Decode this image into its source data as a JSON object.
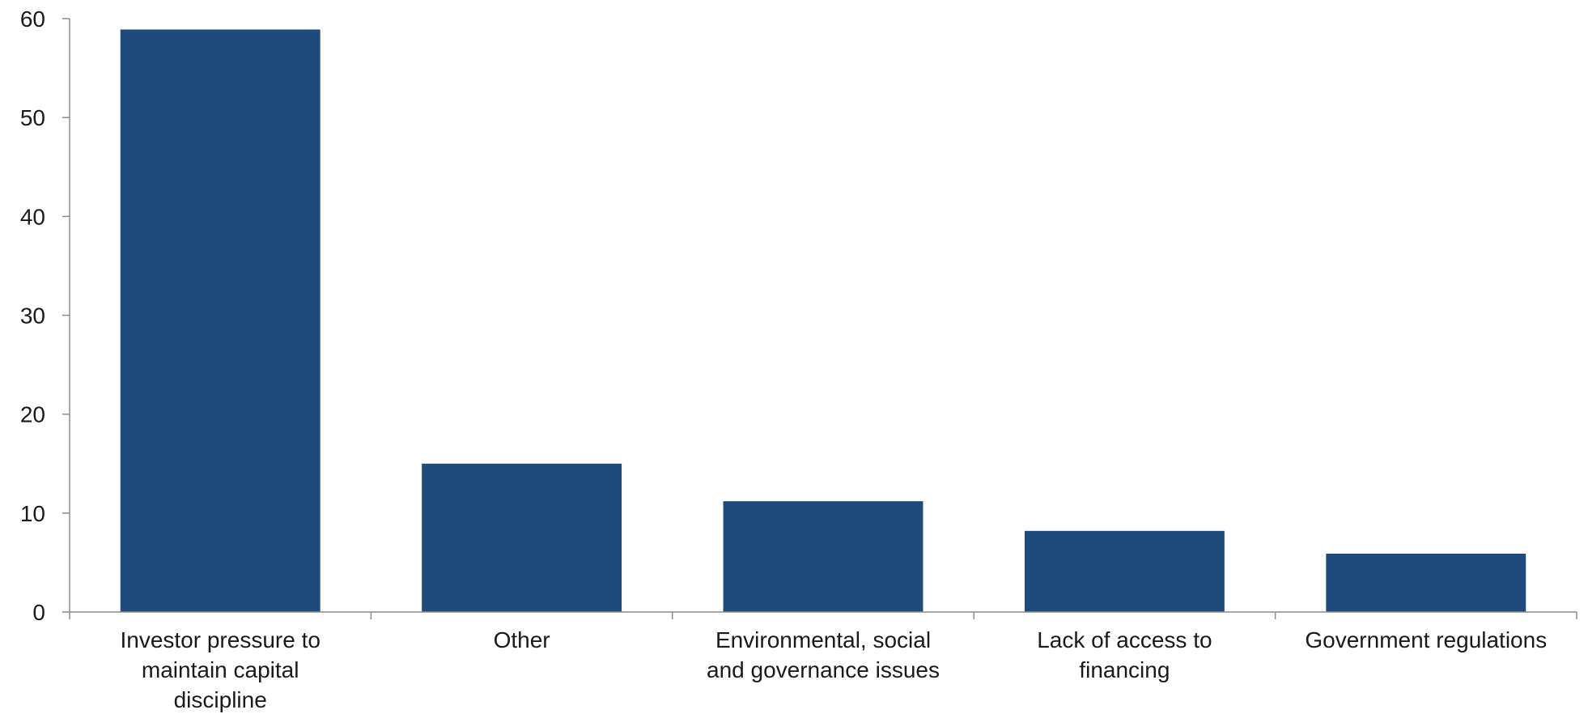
{
  "chart_data": {
    "type": "bar",
    "title": "",
    "xlabel": "",
    "ylabel": "",
    "categories": [
      "Investor pressure to maintain capital discipline",
      "Other",
      "Environmental, social and governance issues",
      "Lack of access to financing",
      "Government regulations"
    ],
    "category_lines": [
      [
        "Investor pressure to",
        "maintain capital",
        "discipline"
      ],
      [
        "Other"
      ],
      [
        "Environmental, social",
        "and governance issues"
      ],
      [
        "Lack of access to",
        "financing"
      ],
      [
        "Government regulations"
      ]
    ],
    "values": [
      58.9,
      15.0,
      11.2,
      8.2,
      5.9
    ],
    "ylim": [
      0,
      60
    ],
    "yticks": [
      0,
      10,
      20,
      30,
      40,
      50,
      60
    ],
    "ytick_labels": [
      "0",
      "10",
      "20",
      "30",
      "40",
      "50",
      "60"
    ],
    "grid": false,
    "legend": "none",
    "bar_color": "#1f4a7c",
    "axis_color": "#8c8c8c"
  }
}
